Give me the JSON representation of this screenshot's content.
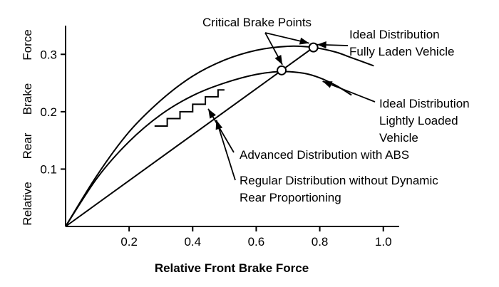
{
  "chart_data": {
    "type": "line",
    "xlabel": "Relative Front Brake Force",
    "ylabel_words": [
      "Relative",
      "Rear",
      "Brake",
      "Force"
    ],
    "xlim": [
      0,
      1.05
    ],
    "ylim": [
      0,
      0.35
    ],
    "x_ticks": [
      {
        "value": 0.2,
        "label": "0.2"
      },
      {
        "value": 0.4,
        "label": "0.4"
      },
      {
        "value": 0.6,
        "label": "0.6"
      },
      {
        "value": 0.8,
        "label": "0.8"
      },
      {
        "value": 1.0,
        "label": "1.0"
      }
    ],
    "y_ticks": [
      {
        "value": 0.1,
        "label": "0.1"
      },
      {
        "value": 0.2,
        "label": "0.2"
      },
      {
        "value": 0.3,
        "label": "0.3"
      }
    ],
    "grid": false,
    "series": [
      {
        "key": "ideal_full",
        "x": [
          0,
          0.1,
          0.2,
          0.3,
          0.4,
          0.5,
          0.6,
          0.7,
          0.78,
          0.85,
          0.9,
          0.97
        ],
        "y": [
          0,
          0.09,
          0.165,
          0.22,
          0.262,
          0.29,
          0.307,
          0.314,
          0.312,
          0.304,
          0.294,
          0.28
        ]
      },
      {
        "key": "ideal_light",
        "x": [
          0,
          0.1,
          0.2,
          0.3,
          0.4,
          0.5,
          0.6,
          0.68,
          0.75,
          0.8,
          0.85,
          0.9
        ],
        "y": [
          0,
          0.085,
          0.148,
          0.195,
          0.228,
          0.25,
          0.265,
          0.27,
          0.267,
          0.259,
          0.246,
          0.229
        ]
      },
      {
        "key": "regular",
        "x": [
          0,
          0.78
        ],
        "y": [
          0,
          0.312
        ]
      },
      {
        "key": "abs_steps",
        "x": [
          0.28,
          0.32,
          0.32,
          0.36,
          0.36,
          0.4,
          0.4,
          0.44,
          0.44,
          0.48,
          0.48,
          0.5
        ],
        "y": [
          0.175,
          0.175,
          0.188,
          0.188,
          0.2,
          0.2,
          0.213,
          0.213,
          0.226,
          0.226,
          0.238,
          0.238
        ]
      }
    ],
    "critical_points": [
      {
        "x": 0.68,
        "y": 0.272
      },
      {
        "x": 0.78,
        "y": 0.312
      }
    ],
    "annotations": {
      "critical": "Critical Brake Points",
      "ideal_full": [
        "Ideal Distribution",
        "Fully Laden Vehicle"
      ],
      "ideal_light": [
        "Ideal Distribution",
        "Lightly Loaded",
        "Vehicle"
      ],
      "abs": "Advanced Distribution with ABS",
      "regular": [
        "Regular Distribution without Dynamic",
        "Rear Proportioning"
      ]
    }
  }
}
